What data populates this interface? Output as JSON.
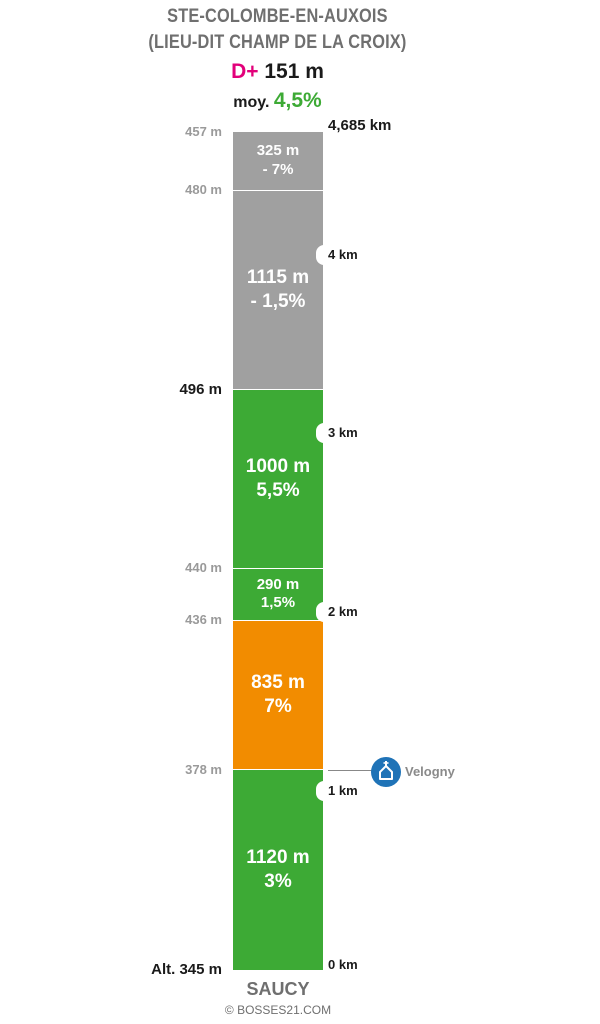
{
  "title": {
    "line1": "STE-COLOMBE-EN-AUXOIS",
    "line2": "(LIEU-DIT CHAMP DE LA CROIX)"
  },
  "summary": {
    "dplus_label": "D+",
    "dplus_value": "151 m",
    "avg_label": "moy.",
    "avg_value": "4,5%"
  },
  "colors": {
    "gray": "#a0a0a0",
    "green": "#3daa35",
    "orange": "#f28c00",
    "magenta": "#e2007a",
    "icon_blue": "#1f73b7"
  },
  "chart_data": {
    "type": "table",
    "total_distance_km": 4.685,
    "segments": [
      {
        "length": "1120 m",
        "grade": "3%",
        "length_m": 1120,
        "grade_pct": 3,
        "color": "green"
      },
      {
        "length": "835 m",
        "grade": "7%",
        "length_m": 835,
        "grade_pct": 7,
        "color": "orange"
      },
      {
        "length": "290 m",
        "grade": "1,5%",
        "length_m": 290,
        "grade_pct": 1.5,
        "color": "green"
      },
      {
        "length": "1000 m",
        "grade": "5,5%",
        "length_m": 1000,
        "grade_pct": 5.5,
        "color": "green"
      },
      {
        "length": "1115 m",
        "grade": "- 1,5%",
        "length_m": 1115,
        "grade_pct": -1.5,
        "color": "gray"
      },
      {
        "length": "325 m",
        "grade": "- 7%",
        "length_m": 325,
        "grade_pct": -7,
        "color": "gray"
      }
    ],
    "altitudes": [
      {
        "label": "Alt. 345 m",
        "strong": true
      },
      {
        "label": "378 m",
        "strong": false
      },
      {
        "label": "436 m",
        "strong": false
      },
      {
        "label": "440 m",
        "strong": false
      },
      {
        "label": "496 m",
        "strong": true
      },
      {
        "label": "480 m",
        "strong": false
      },
      {
        "label": "457 m",
        "strong": false
      }
    ],
    "km_markers": [
      {
        "label": "0 km",
        "km": 0
      },
      {
        "label": "1 km",
        "km": 1
      },
      {
        "label": "2 km",
        "km": 2
      },
      {
        "label": "3 km",
        "km": 3
      },
      {
        "label": "4 km",
        "km": 4
      }
    ],
    "end_label": "4,685 km",
    "landmark": {
      "name": "Velogny",
      "icon": "church-icon",
      "distance_m": 1120
    },
    "start_name": "SAUCY"
  },
  "footer": {
    "copyright": "© BOSSES21.COM"
  }
}
